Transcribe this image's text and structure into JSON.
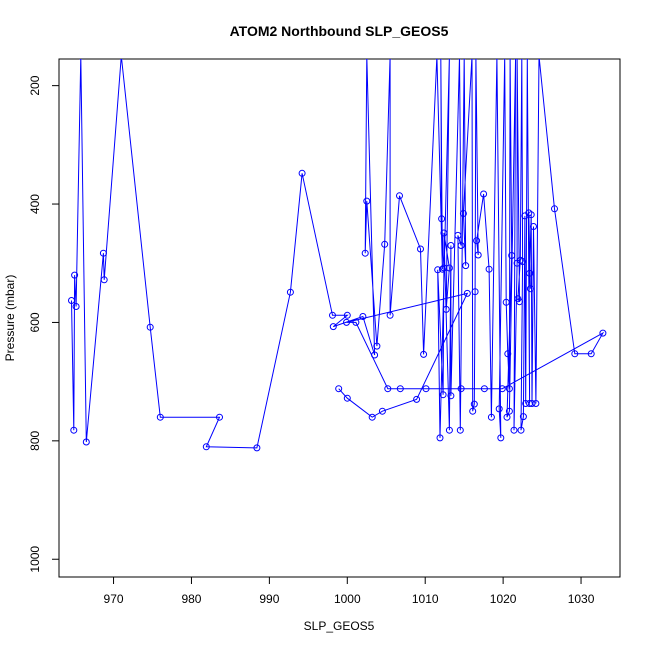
{
  "chart_data": {
    "type": "line",
    "title": "ATOM2 Northbound SLP_GEOS5",
    "xlabel": "SLP_GEOS5",
    "ylabel": "Pressure (mbar)",
    "xlim": [
      963,
      1035
    ],
    "ylim": [
      1030,
      155
    ],
    "y_inverted": true,
    "x_ticks": [
      970,
      980,
      990,
      1000,
      1010,
      1020,
      1030
    ],
    "y_ticks": [
      200,
      400,
      600,
      800,
      1000
    ],
    "grid": false,
    "legend": "none",
    "series_color": "#0000ff",
    "series": [
      {
        "marker": "open-circle",
        "points": [
          [
            964.6,
            563
          ],
          [
            964.9,
            782
          ],
          [
            965.0,
            520
          ],
          [
            965.2,
            573
          ],
          [
            965.8,
            150
          ],
          [
            966.5,
            802
          ],
          [
            968.7,
            483
          ],
          [
            968.8,
            528
          ],
          [
            971.0,
            150
          ],
          [
            974.7,
            608
          ],
          [
            976.0,
            760
          ],
          [
            983.6,
            760
          ],
          [
            981.9,
            810
          ],
          [
            988.4,
            812
          ],
          [
            992.7,
            549
          ],
          [
            994.2,
            348
          ],
          [
            998.1,
            588
          ],
          [
            1000.0,
            588
          ],
          [
            998.2,
            607
          ],
          [
            1002.0,
            590
          ],
          [
            1003.5,
            655
          ],
          [
            1002.5,
            150
          ],
          [
            1002.3,
            483
          ],
          [
            1002.5,
            395
          ],
          [
            1003.8,
            640
          ],
          [
            1004.8,
            468
          ],
          [
            1005.5,
            150
          ],
          [
            1005.5,
            588
          ],
          [
            1006.7,
            386
          ],
          [
            1009.4,
            476
          ],
          [
            1009.8,
            654
          ],
          [
            1011.5,
            150
          ],
          [
            1012.2,
            510
          ],
          [
            1012.0,
            150
          ],
          [
            1012.1,
            425
          ],
          [
            1012.4,
            508
          ],
          [
            1012.3,
            722
          ],
          [
            1011.6,
            511
          ],
          [
            1011.9,
            795
          ],
          [
            1013.1,
            150
          ],
          [
            1012.7,
            578
          ],
          [
            1013.1,
            508
          ],
          [
            1012.4,
            449
          ],
          [
            1013.1,
            782
          ],
          [
            1013.3,
            470
          ],
          [
            1013.3,
            724
          ],
          [
            1014.4,
            150
          ],
          [
            1014.6,
            470
          ],
          [
            1014.2,
            453
          ],
          [
            1014.5,
            782
          ],
          [
            1015.0,
            150
          ],
          [
            1015.2,
            504
          ],
          [
            1014.9,
            416
          ],
          [
            1016.0,
            150
          ],
          [
            1016.1,
            750
          ],
          [
            1016.3,
            738
          ],
          [
            1016.4,
            548
          ],
          [
            1016.5,
            150
          ],
          [
            1016.8,
            486
          ],
          [
            1016.6,
            462
          ],
          [
            1017.5,
            383
          ],
          [
            1018.2,
            510
          ],
          [
            1018.5,
            760
          ],
          [
            1019.2,
            150
          ],
          [
            1019.7,
            795
          ],
          [
            1019.5,
            746
          ],
          [
            1020.2,
            150
          ],
          [
            1020.4,
            566
          ],
          [
            1020.6,
            653
          ],
          [
            1020.8,
            712
          ],
          [
            1020.9,
            150
          ],
          [
            1021.1,
            487
          ],
          [
            1020.5,
            760
          ],
          [
            1020.8,
            750
          ],
          [
            1021.6,
            150
          ],
          [
            1021.4,
            782
          ],
          [
            1021.8,
            500
          ],
          [
            1021.8,
            150
          ],
          [
            1022.1,
            565
          ],
          [
            1021.9,
            560
          ],
          [
            1022.2,
            495
          ],
          [
            1022.4,
            150
          ],
          [
            1022.5,
            497
          ],
          [
            1022.3,
            782
          ],
          [
            1022.6,
            759
          ],
          [
            1022.8,
            420
          ],
          [
            1022.9,
            737
          ],
          [
            1023.1,
            150
          ],
          [
            1023.4,
            737
          ],
          [
            1023.3,
            415
          ],
          [
            1023.5,
            543
          ],
          [
            1023.4,
            517
          ],
          [
            1023.6,
            418
          ],
          [
            1023.7,
            737
          ],
          [
            1023.9,
            438
          ],
          [
            1024.2,
            737
          ],
          [
            1024.6,
            150
          ],
          [
            1026.6,
            408
          ],
          [
            1029.2,
            653
          ],
          [
            1031.3,
            653
          ],
          [
            1032.8,
            618
          ],
          [
            1019.9,
            712
          ],
          [
            1017.6,
            712
          ],
          [
            1014.6,
            712
          ],
          [
            1010.1,
            712
          ],
          [
            1006.8,
            712
          ],
          [
            1005.2,
            712
          ],
          [
            1001.1,
            600
          ],
          [
            999.9,
            600
          ],
          [
            1015.4,
            551
          ],
          [
            1008.9,
            730
          ],
          [
            1004.5,
            750
          ],
          [
            1003.2,
            760
          ],
          [
            1000.0,
            728
          ],
          [
            998.9,
            712
          ]
        ]
      }
    ]
  }
}
